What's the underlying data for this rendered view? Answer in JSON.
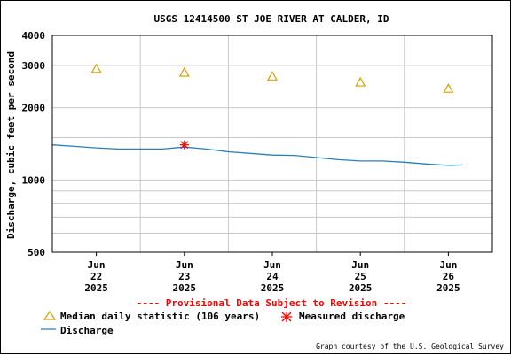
{
  "chart_data": {
    "type": "line",
    "title": "USGS 12414500 ST JOE RIVER AT CALDER, ID",
    "ylabel": "Discharge, cubic feet per second",
    "xlabel": "",
    "y_scale": "log",
    "ylim": [
      500,
      4000
    ],
    "y_ticks": [
      {
        "value": 4000,
        "label": "4000"
      },
      {
        "value": 3000,
        "label": "3000"
      },
      {
        "value": 2000,
        "label": "2000"
      },
      {
        "value": 1000,
        "label": "1000"
      },
      {
        "value": 500,
        "label": "500"
      }
    ],
    "y_minor_gridlines": [
      600,
      700,
      800,
      900,
      1500
    ],
    "xlim": [
      "2025-06-22T00:00",
      "2025-06-27T00:00"
    ],
    "x_ticks": [
      {
        "date": "2025-06-22T12:00",
        "month": "Jun",
        "day": "22",
        "year": "2025"
      },
      {
        "date": "2025-06-23T12:00",
        "month": "Jun",
        "day": "23",
        "year": "2025"
      },
      {
        "date": "2025-06-24T12:00",
        "month": "Jun",
        "day": "24",
        "year": "2025"
      },
      {
        "date": "2025-06-25T12:00",
        "month": "Jun",
        "day": "25",
        "year": "2025"
      },
      {
        "date": "2025-06-26T12:00",
        "month": "Jun",
        "day": "26",
        "year": "2025"
      }
    ],
    "x_gridlines": [
      "2025-06-23T00:00",
      "2025-06-24T00:00",
      "2025-06-25T00:00",
      "2025-06-26T00:00"
    ],
    "grid": true,
    "series": [
      {
        "name": "Discharge",
        "kind": "line",
        "color": "#2a7fb8",
        "points": [
          {
            "date": "2025-06-22T00:00",
            "value": 1400
          },
          {
            "date": "2025-06-22T06:00",
            "value": 1380
          },
          {
            "date": "2025-06-22T12:00",
            "value": 1360
          },
          {
            "date": "2025-06-22T18:00",
            "value": 1345
          },
          {
            "date": "2025-06-23T00:00",
            "value": 1345
          },
          {
            "date": "2025-06-23T06:00",
            "value": 1345
          },
          {
            "date": "2025-06-23T12:00",
            "value": 1370
          },
          {
            "date": "2025-06-23T18:00",
            "value": 1345
          },
          {
            "date": "2025-06-24T00:00",
            "value": 1310
          },
          {
            "date": "2025-06-24T06:00",
            "value": 1290
          },
          {
            "date": "2025-06-24T12:00",
            "value": 1270
          },
          {
            "date": "2025-06-24T18:00",
            "value": 1265
          },
          {
            "date": "2025-06-25T00:00",
            "value": 1240
          },
          {
            "date": "2025-06-25T06:00",
            "value": 1215
          },
          {
            "date": "2025-06-25T12:00",
            "value": 1200
          },
          {
            "date": "2025-06-25T18:00",
            "value": 1200
          },
          {
            "date": "2025-06-26T00:00",
            "value": 1185
          },
          {
            "date": "2025-06-26T06:00",
            "value": 1165
          },
          {
            "date": "2025-06-26T12:00",
            "value": 1150
          },
          {
            "date": "2025-06-26T16:00",
            "value": 1155
          }
        ]
      },
      {
        "name": "Median daily statistic (106 years)",
        "kind": "marker",
        "marker": "triangle",
        "color": "#d8a000",
        "points": [
          {
            "date": "2025-06-22T12:00",
            "value": 2900
          },
          {
            "date": "2025-06-23T12:00",
            "value": 2800
          },
          {
            "date": "2025-06-24T12:00",
            "value": 2700
          },
          {
            "date": "2025-06-25T12:00",
            "value": 2550
          },
          {
            "date": "2025-06-26T12:00",
            "value": 2400
          }
        ]
      },
      {
        "name": "Measured discharge",
        "kind": "marker",
        "marker": "asterisk",
        "color": "#ff0000",
        "points": [
          {
            "date": "2025-06-23T12:00",
            "value": 1400
          }
        ]
      }
    ]
  },
  "notice": "---- Provisional Data Subject to Revision ----",
  "legend": {
    "median_label": "Median daily statistic (106 years)",
    "measured_label": "Measured discharge",
    "discharge_label": "Discharge"
  },
  "credit": "Graph courtesy of the U.S. Geological Survey"
}
